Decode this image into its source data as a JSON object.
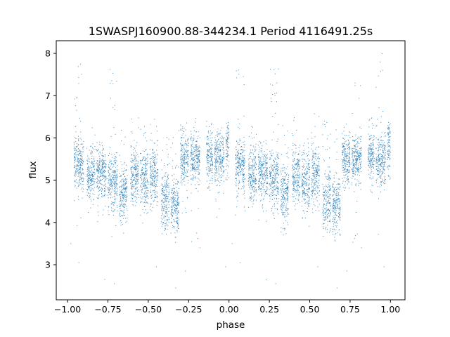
{
  "chart_data": {
    "type": "scatter",
    "title": "1SWASPJ160900.88-344234.1 Period 4116491.25s",
    "xlabel": "phase",
    "ylabel": "flux",
    "xlim": [
      -1.07,
      1.09
    ],
    "ylim": [
      2.17,
      8.3
    ],
    "x_ticks": [
      -1.0,
      -0.75,
      -0.5,
      -0.25,
      0.0,
      0.25,
      0.5,
      0.75,
      1.0
    ],
    "x_tick_labels": [
      "−1.00",
      "−0.75",
      "−0.50",
      "−0.25",
      "0.00",
      "0.25",
      "0.50",
      "0.75",
      "1.00"
    ],
    "y_ticks": [
      3,
      4,
      5,
      6,
      7,
      8
    ],
    "y_tick_labels": [
      "3",
      "4",
      "5",
      "6",
      "7",
      "8"
    ],
    "grid": false,
    "legend": "none",
    "marker_color": "#1f77b4",
    "series": [
      {
        "phase_bands": [
          {
            "start": -0.96,
            "end": -0.9,
            "mean": 5.4,
            "spread": 0.32,
            "max": 8.0,
            "min": 3.3
          },
          {
            "start": -0.88,
            "end": -0.83,
            "mean": 5.1,
            "spread": 0.3,
            "max": 6.3,
            "min": 4.2
          },
          {
            "start": -0.82,
            "end": -0.76,
            "mean": 5.15,
            "spread": 0.3,
            "max": 6.0,
            "min": 4.0
          },
          {
            "start": -0.75,
            "end": -0.69,
            "mean": 5.0,
            "spread": 0.35,
            "max": 7.7,
            "min": 3.6
          },
          {
            "start": -0.68,
            "end": -0.63,
            "mean": 4.7,
            "spread": 0.33,
            "max": 6.3,
            "min": 3.7
          },
          {
            "start": -0.61,
            "end": -0.56,
            "mean": 5.1,
            "spread": 0.3,
            "max": 6.5,
            "min": 4.3
          },
          {
            "start": -0.55,
            "end": -0.5,
            "mean": 5.0,
            "spread": 0.35,
            "max": 6.3,
            "min": 3.9
          },
          {
            "start": -0.49,
            "end": -0.44,
            "mean": 5.1,
            "spread": 0.35,
            "max": 6.6,
            "min": 4.1
          },
          {
            "start": -0.42,
            "end": -0.37,
            "mean": 4.5,
            "spread": 0.35,
            "max": 6.4,
            "min": 3.6
          },
          {
            "start": -0.36,
            "end": -0.31,
            "mean": 4.4,
            "spread": 0.35,
            "max": 6.2,
            "min": 3.5
          },
          {
            "start": -0.3,
            "end": -0.25,
            "mean": 5.5,
            "spread": 0.3,
            "max": 6.4,
            "min": 4.2
          },
          {
            "start": -0.24,
            "end": -0.18,
            "mean": 5.5,
            "spread": 0.3,
            "max": 6.5,
            "min": 3.5
          },
          {
            "start": -0.14,
            "end": -0.1,
            "mean": 5.6,
            "spread": 0.28,
            "max": 6.5,
            "min": 4.7
          },
          {
            "start": -0.09,
            "end": -0.03,
            "mean": 5.5,
            "spread": 0.3,
            "max": 6.5,
            "min": 3.6
          },
          {
            "start": -0.02,
            "end": 0.0,
            "mean": 5.8,
            "spread": 0.3,
            "max": 6.4,
            "min": 5.0
          },
          {
            "start": 0.04,
            "end": 0.1,
            "mean": 5.4,
            "spread": 0.32,
            "max": 8.0,
            "min": 3.3
          },
          {
            "start": 0.12,
            "end": 0.17,
            "mean": 5.1,
            "spread": 0.3,
            "max": 6.3,
            "min": 4.2
          },
          {
            "start": 0.18,
            "end": 0.24,
            "mean": 5.15,
            "spread": 0.3,
            "max": 6.0,
            "min": 4.0
          },
          {
            "start": 0.25,
            "end": 0.31,
            "mean": 5.0,
            "spread": 0.35,
            "max": 7.7,
            "min": 3.6
          },
          {
            "start": 0.32,
            "end": 0.37,
            "mean": 4.7,
            "spread": 0.33,
            "max": 6.3,
            "min": 3.7
          },
          {
            "start": 0.39,
            "end": 0.44,
            "mean": 5.1,
            "spread": 0.3,
            "max": 6.5,
            "min": 4.3
          },
          {
            "start": 0.45,
            "end": 0.5,
            "mean": 5.0,
            "spread": 0.35,
            "max": 6.3,
            "min": 3.9
          },
          {
            "start": 0.51,
            "end": 0.56,
            "mean": 5.1,
            "spread": 0.35,
            "max": 6.6,
            "min": 4.1
          },
          {
            "start": 0.58,
            "end": 0.63,
            "mean": 4.5,
            "spread": 0.35,
            "max": 6.4,
            "min": 3.6
          },
          {
            "start": 0.64,
            "end": 0.69,
            "mean": 4.4,
            "spread": 0.35,
            "max": 6.2,
            "min": 3.5
          },
          {
            "start": 0.7,
            "end": 0.75,
            "mean": 5.5,
            "spread": 0.3,
            "max": 6.4,
            "min": 4.2
          },
          {
            "start": 0.76,
            "end": 0.82,
            "mean": 5.5,
            "spread": 0.3,
            "max": 7.3,
            "min": 3.5
          },
          {
            "start": 0.86,
            "end": 0.9,
            "mean": 5.6,
            "spread": 0.28,
            "max": 6.5,
            "min": 4.7
          },
          {
            "start": 0.91,
            "end": 0.97,
            "mean": 5.5,
            "spread": 0.3,
            "max": 8.0,
            "min": 3.6
          },
          {
            "start": 0.98,
            "end": 1.0,
            "mean": 5.8,
            "spread": 0.3,
            "max": 6.4,
            "min": 5.0
          }
        ],
        "outliers": [
          {
            "x": -0.98,
            "y": 3.5
          },
          {
            "x": -0.93,
            "y": 3.05
          },
          {
            "x": -0.77,
            "y": 2.65
          },
          {
            "x": -0.71,
            "y": 2.55
          },
          {
            "x": -0.45,
            "y": 2.95
          },
          {
            "x": -0.33,
            "y": 2.45
          },
          {
            "x": -0.27,
            "y": 2.85
          },
          {
            "x": -0.18,
            "y": 3.4
          },
          {
            "x": -0.02,
            "y": 2.95
          },
          {
            "x": 0.02,
            "y": 3.5
          },
          {
            "x": 0.07,
            "y": 3.05
          },
          {
            "x": 0.23,
            "y": 2.65
          },
          {
            "x": 0.29,
            "y": 2.55
          },
          {
            "x": 0.55,
            "y": 2.95
          },
          {
            "x": 0.67,
            "y": 2.45
          },
          {
            "x": 0.73,
            "y": 2.85
          },
          {
            "x": 0.82,
            "y": 3.4
          },
          {
            "x": 0.96,
            "y": 2.95
          }
        ]
      }
    ]
  }
}
